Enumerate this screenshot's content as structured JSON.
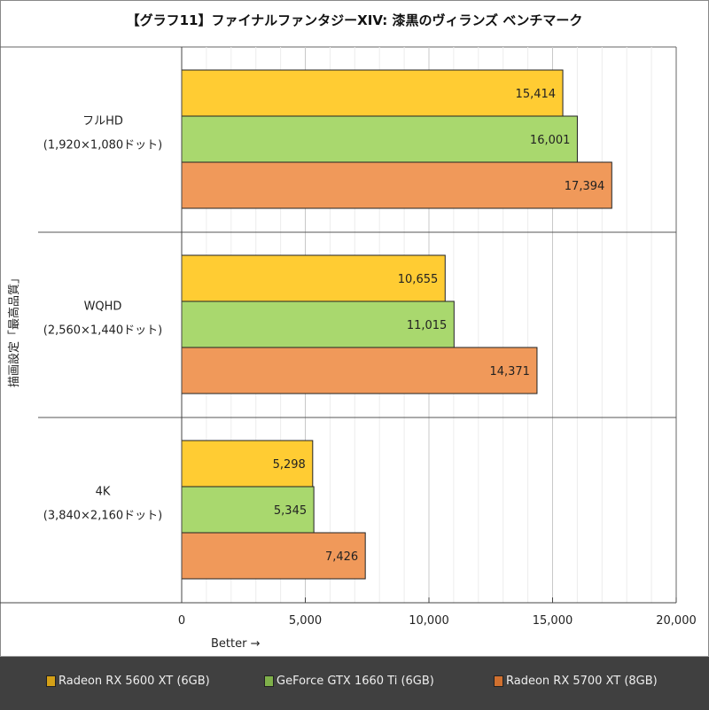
{
  "chart_data": {
    "type": "bar",
    "orientation": "horizontal",
    "title": "【グラフ11】ファイナルファンタジーXIV: 漆黒のヴィランズ ベンチマーク",
    "ylabel": "描画設定「最高品質」",
    "xlabel": "Better →",
    "categories": [
      [
        "フルHD",
        "(1,920×1,080ドット)"
      ],
      [
        "WQHD",
        "(2,560×1,440ドット)"
      ],
      [
        "4K",
        "(3,840×2,160ドット)"
      ]
    ],
    "series": [
      {
        "name": "Radeon RX 5600 XT (6GB)",
        "color": "#FFCC33",
        "legend_color": "#D4A017",
        "values": [
          15414,
          10655,
          5298
        ]
      },
      {
        "name": "GeForce GTX 1660 Ti (6GB)",
        "color": "#A9D86E",
        "legend_color": "#7FB04A",
        "values": [
          16001,
          11015,
          5345
        ]
      },
      {
        "name": "Radeon RX 5700 XT (8GB)",
        "color": "#F0995A",
        "legend_color": "#D0702F",
        "values": [
          17394,
          14371,
          7426
        ]
      }
    ],
    "xlim": [
      0,
      20000
    ],
    "xticks": [
      0,
      5000,
      10000,
      15000,
      20000
    ],
    "xtick_labels": [
      "0",
      "5,000",
      "10,000",
      "15,000",
      "20,000"
    ],
    "minor_grid_step": 1000,
    "grid": true,
    "legend_position": "bottom"
  }
}
